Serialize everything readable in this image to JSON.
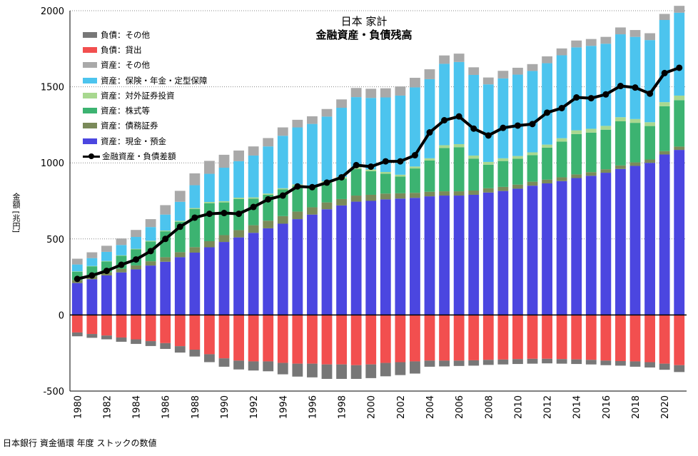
{
  "chart_data": {
    "type": "bar",
    "stacked": true,
    "title": "日本 家計",
    "subtitle": "金融資産・負債残高",
    "xlabel": "",
    "ylabel": "金額 [兆円]",
    "ylim": [
      -500,
      2000
    ],
    "yticks": [
      -500,
      0,
      500,
      1000,
      1500,
      2000
    ],
    "xtick_labels": [
      "1980",
      "1982",
      "1984",
      "1986",
      "1988",
      "1990",
      "1992",
      "1994",
      "1996",
      "1998",
      "2000",
      "2002",
      "2004",
      "2006",
      "2008",
      "2010",
      "2012",
      "2014",
      "2016",
      "2018",
      "2020"
    ],
    "grid": true,
    "legend_position": "top-left",
    "source": "日本銀行 資金循環 年度 ストックの数値",
    "categories": [
      1980,
      1981,
      1982,
      1983,
      1984,
      1985,
      1986,
      1987,
      1988,
      1989,
      1990,
      1991,
      1992,
      1993,
      1994,
      1995,
      1996,
      1997,
      1998,
      1999,
      2000,
      2001,
      2002,
      2003,
      2004,
      2005,
      2006,
      2007,
      2008,
      2009,
      2010,
      2011,
      2012,
      2013,
      2014,
      2015,
      2016,
      2017,
      2018,
      2019,
      2020,
      2021
    ],
    "series": [
      {
        "name": "資産：現金・預金",
        "color": "#4b46e0",
        "kind": "asset",
        "values": [
          210,
          235,
          260,
          280,
          300,
          325,
          350,
          380,
          410,
          445,
          480,
          510,
          540,
          570,
          600,
          630,
          660,
          695,
          720,
          745,
          750,
          760,
          765,
          770,
          780,
          785,
          785,
          790,
          805,
          815,
          830,
          850,
          865,
          880,
          900,
          915,
          935,
          960,
          980,
          1000,
          1055,
          1085
        ]
      },
      {
        "name": "資産：債務証券",
        "color": "#7a8a5a",
        "kind": "asset",
        "values": [
          20,
          20,
          22,
          24,
          26,
          28,
          30,
          33,
          36,
          40,
          45,
          48,
          50,
          50,
          50,
          50,
          48,
          45,
          42,
          40,
          40,
          38,
          35,
          33,
          30,
          28,
          28,
          28,
          28,
          27,
          27,
          26,
          25,
          25,
          24,
          24,
          23,
          23,
          23,
          22,
          22,
          22
        ]
      },
      {
        "name": "資産：株式等",
        "color": "#3cb371",
        "kind": "asset",
        "values": [
          55,
          65,
          70,
          85,
          105,
          130,
          170,
          200,
          250,
          250,
          215,
          205,
          175,
          170,
          175,
          170,
          135,
          130,
          135,
          175,
          155,
          130,
          110,
          160,
          205,
          285,
          290,
          210,
          155,
          170,
          170,
          175,
          210,
          235,
          265,
          260,
          260,
          290,
          260,
          220,
          295,
          305
        ]
      },
      {
        "name": "資産：対外証券投資",
        "color": "#a8d890",
        "kind": "asset",
        "values": [
          2,
          2,
          3,
          3,
          4,
          5,
          5,
          6,
          7,
          8,
          8,
          8,
          8,
          8,
          8,
          8,
          8,
          9,
          10,
          12,
          12,
          12,
          12,
          13,
          15,
          18,
          20,
          20,
          18,
          18,
          18,
          18,
          20,
          22,
          25,
          25,
          25,
          27,
          25,
          25,
          27,
          30
        ]
      },
      {
        "name": "資産：保険・年金・定型保障",
        "color": "#4cc4ee",
        "kind": "asset",
        "values": [
          45,
          52,
          60,
          68,
          78,
          90,
          105,
          125,
          150,
          185,
          220,
          240,
          275,
          310,
          345,
          375,
          405,
          425,
          455,
          460,
          470,
          490,
          520,
          520,
          520,
          535,
          540,
          530,
          510,
          525,
          535,
          535,
          535,
          545,
          545,
          545,
          540,
          545,
          540,
          540,
          540,
          545
        ]
      },
      {
        "name": "資産：その他",
        "color": "#a9a9a9",
        "kind": "asset",
        "values": [
          38,
          38,
          40,
          43,
          46,
          52,
          62,
          72,
          78,
          85,
          85,
          70,
          60,
          55,
          55,
          50,
          50,
          50,
          55,
          60,
          60,
          60,
          60,
          63,
          65,
          55,
          55,
          50,
          45,
          50,
          45,
          45,
          45,
          45,
          45,
          45,
          45,
          45,
          45,
          45,
          40,
          45
        ]
      },
      {
        "name": "負債：貸出",
        "color": "#f24f4f",
        "kind": "liability",
        "values": [
          -115,
          -125,
          -135,
          -148,
          -160,
          -172,
          -185,
          -205,
          -228,
          -258,
          -285,
          -300,
          -305,
          -305,
          -315,
          -320,
          -320,
          -325,
          -325,
          -330,
          -325,
          -315,
          -310,
          -305,
          -300,
          -300,
          -300,
          -298,
          -295,
          -293,
          -290,
          -288,
          -288,
          -290,
          -292,
          -295,
          -300,
          -303,
          -305,
          -310,
          -320,
          -330
        ]
      },
      {
        "name": "負債：その他",
        "color": "#777777",
        "kind": "liability",
        "values": [
          -25,
          -25,
          -25,
          -28,
          -30,
          -32,
          -38,
          -42,
          -45,
          -52,
          -55,
          -58,
          -60,
          -65,
          -75,
          -85,
          -90,
          -95,
          -95,
          -90,
          -90,
          -88,
          -85,
          -80,
          -40,
          -38,
          -35,
          -35,
          -33,
          -32,
          -32,
          -32,
          -30,
          -30,
          -30,
          -30,
          -30,
          -30,
          -35,
          -35,
          -40,
          -45
        ]
      },
      {
        "name": "金融資産・負債差額",
        "color": "#000000",
        "kind": "line",
        "values": [
          237,
          260,
          290,
          330,
          365,
          420,
          500,
          580,
          640,
          665,
          670,
          665,
          710,
          760,
          785,
          845,
          840,
          870,
          905,
          985,
          975,
          1010,
          1010,
          1050,
          1200,
          1280,
          1305,
          1225,
          1180,
          1230,
          1245,
          1255,
          1330,
          1360,
          1430,
          1425,
          1450,
          1505,
          1495,
          1455,
          1590,
          1625
        ]
      }
    ],
    "legend_order": [
      "負債：その他",
      "負債：貸出",
      "資産：その他",
      "資産：保険・年金・定型保障",
      "資産：対外証券投資",
      "資産：株式等",
      "資産：債務証券",
      "資産：現金・預金",
      "金融資産・負債差額"
    ]
  }
}
